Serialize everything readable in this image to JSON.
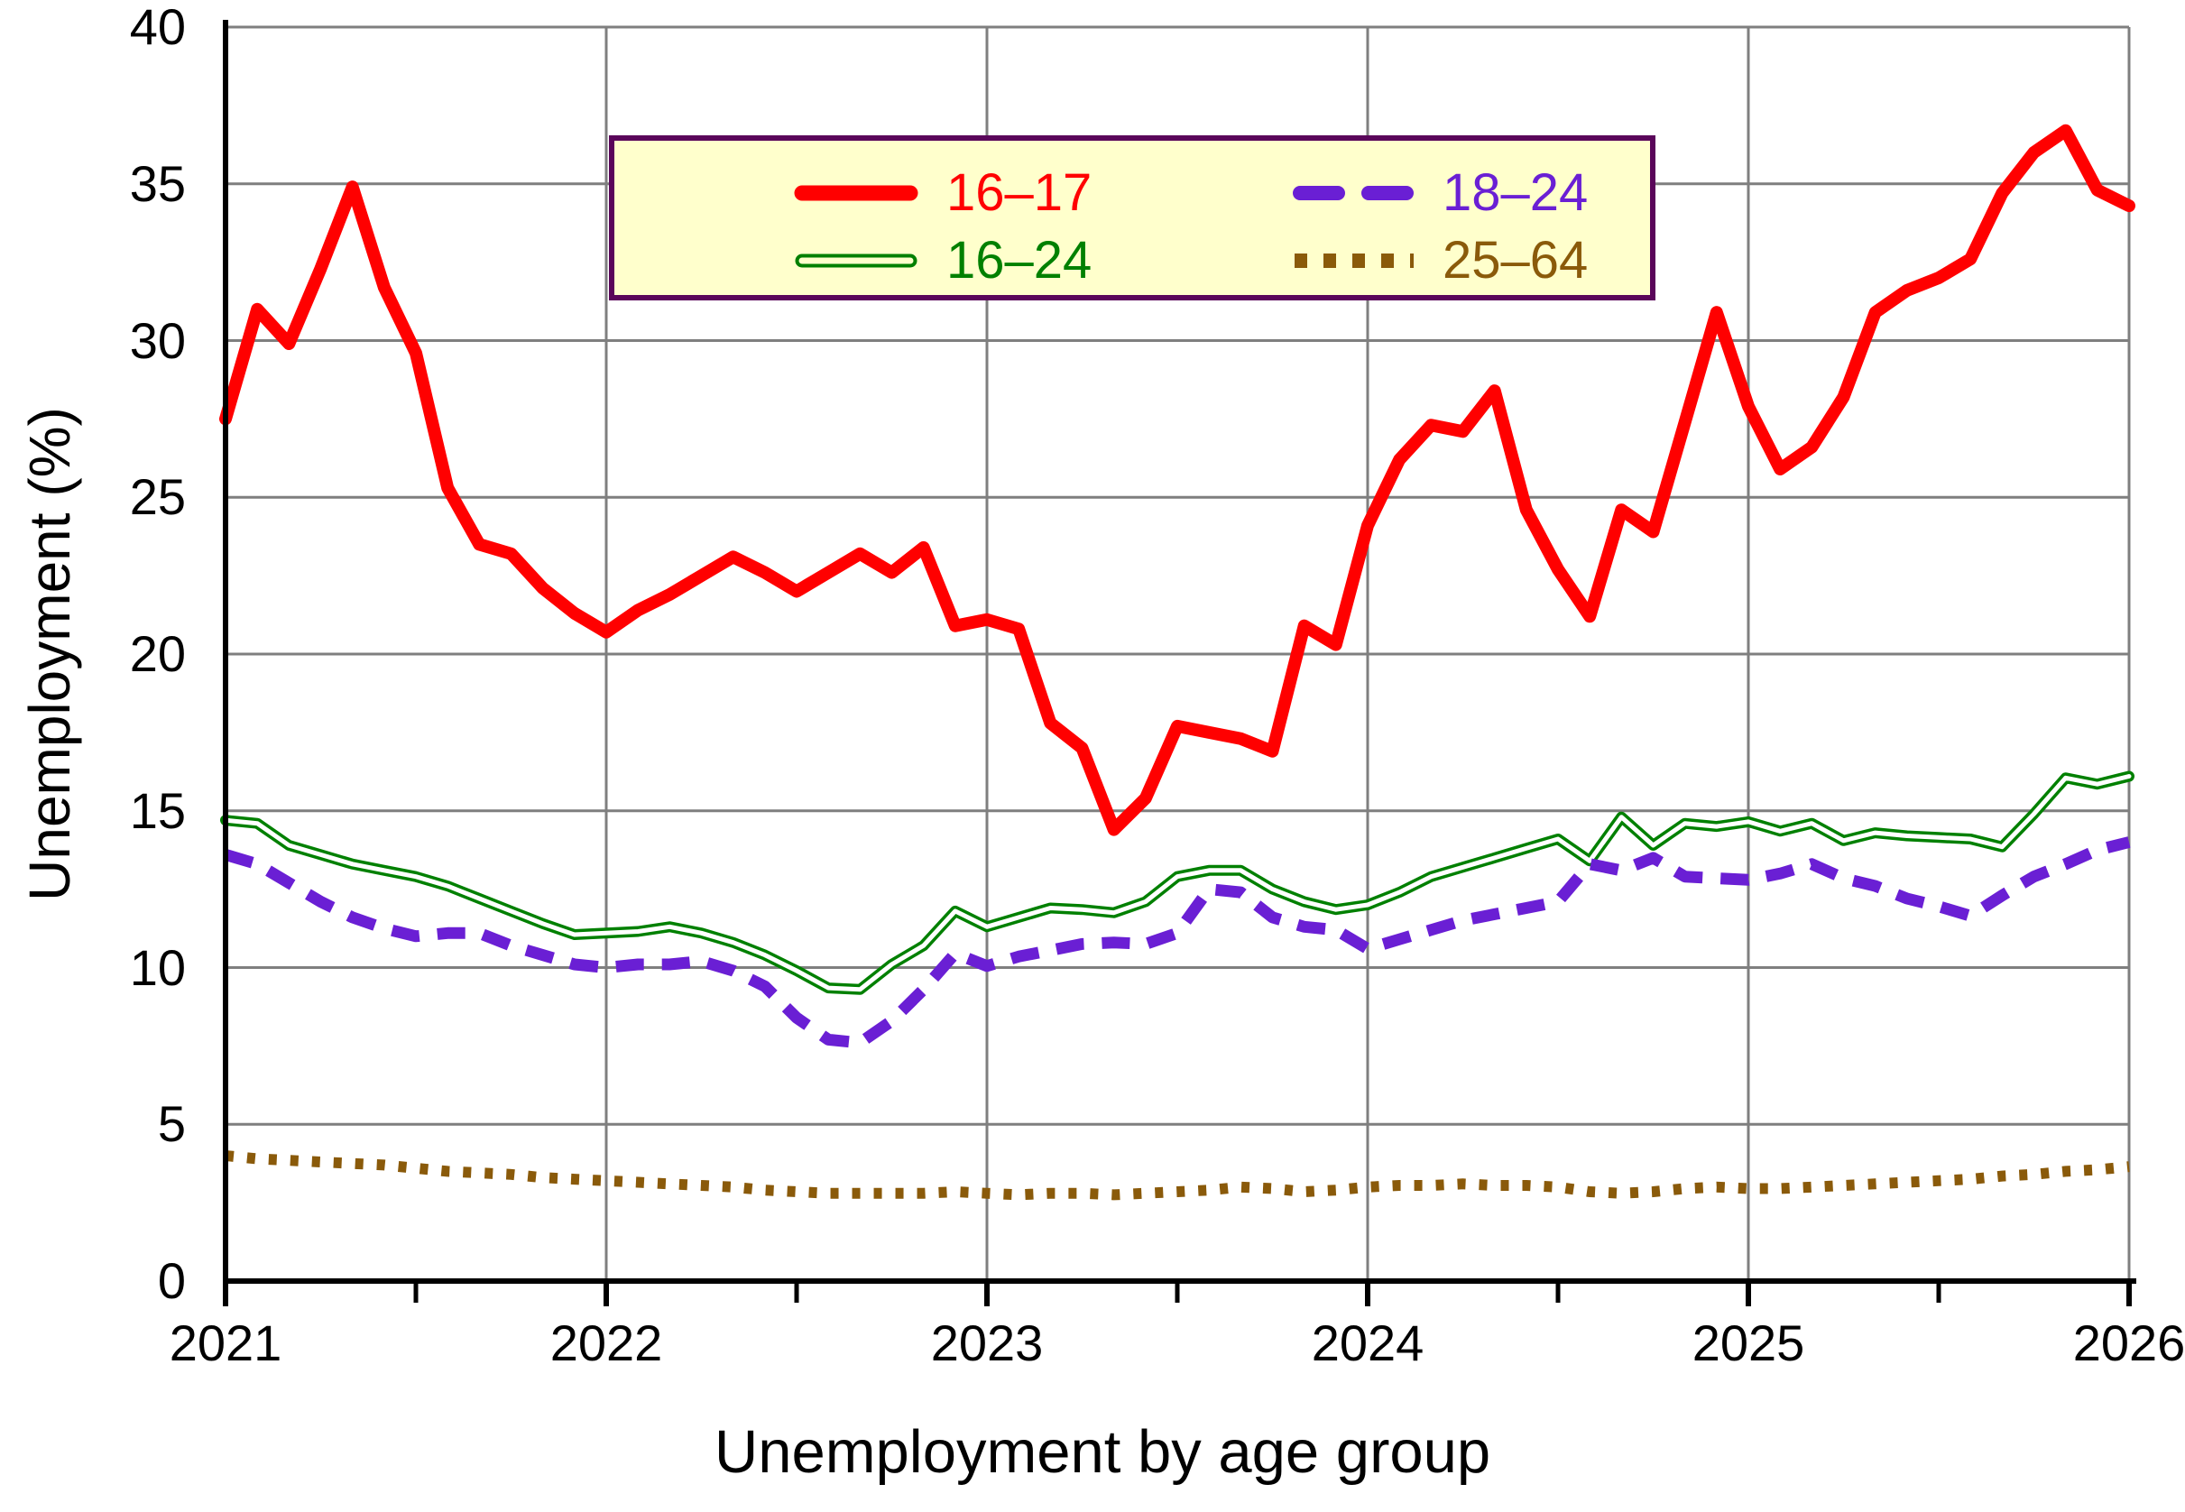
{
  "page": {
    "title": "Unemployment by age group",
    "y_axis_label": "Unemployment (%)"
  },
  "axes": {
    "y_ticks": [
      {
        "label": "0",
        "value": 0
      },
      {
        "label": "5",
        "value": 5
      },
      {
        "label": "10",
        "value": 10
      },
      {
        "label": "15",
        "value": 15
      },
      {
        "label": "20",
        "value": 20
      },
      {
        "label": "25",
        "value": 25
      },
      {
        "label": "30",
        "value": 30
      },
      {
        "label": "35",
        "value": 35
      },
      {
        "label": "40",
        "value": 40
      }
    ],
    "x_ticks": [
      {
        "label": "2021",
        "value": 2021
      },
      {
        "label": "2022",
        "value": 2022
      },
      {
        "label": "2023",
        "value": 2023
      },
      {
        "label": "2024",
        "value": 2024
      },
      {
        "label": "2025",
        "value": 2025
      },
      {
        "label": "2026",
        "value": 2026
      }
    ]
  },
  "legend": {
    "items": [
      {
        "label": "16–17",
        "color": "#FF0000",
        "style": "solid-thick"
      },
      {
        "label": "18–24",
        "color": "#6A1FD4",
        "style": "dashed"
      },
      {
        "label": "16–24",
        "color": "#008000",
        "style": "double-outline"
      },
      {
        "label": "25–64",
        "color": "#8A5A0A",
        "style": "dotted"
      }
    ],
    "background": "#FFFFCC",
    "border_color": "#5A065A",
    "position": "top-center"
  },
  "chart_data": {
    "type": "line",
    "title": "Unemployment by age group",
    "xlabel": "",
    "ylabel": "Unemployment (%)",
    "ylim": [
      0,
      40
    ],
    "y_tick_step": 5,
    "xlim": [
      2021,
      2026
    ],
    "x_unit": "monthly",
    "x_start": "2021-01",
    "x_end": "2026-01",
    "points_per_series": 61,
    "grid": true,
    "grid_color": "#7F7F7F",
    "series": [
      {
        "name": "16–17",
        "color": "#FF0000",
        "line_style": "solid",
        "width": 14,
        "values": [
          27.5,
          31.0,
          29.9,
          32.3,
          34.9,
          31.7,
          29.6,
          25.3,
          23.5,
          23.2,
          22.1,
          21.3,
          20.7,
          21.4,
          21.9,
          22.5,
          23.1,
          22.6,
          22.0,
          22.6,
          23.2,
          22.6,
          23.4,
          20.9,
          21.1,
          20.8,
          17.8,
          17.0,
          14.4,
          15.4,
          17.7,
          17.5,
          17.3,
          16.9,
          20.9,
          20.3,
          24.1,
          26.2,
          27.3,
          27.1,
          28.4,
          24.6,
          22.7,
          21.2,
          24.6,
          23.9,
          27.4,
          30.9,
          27.9,
          25.9,
          26.6,
          28.2,
          30.9,
          31.6,
          32.0,
          32.6,
          34.7,
          36.0,
          36.7,
          34.8,
          34.3
        ]
      },
      {
        "name": "18–24",
        "color": "#6A1FD4",
        "line_style": "dashed",
        "width": 13,
        "values": [
          13.6,
          13.3,
          12.7,
          12.1,
          11.6,
          11.25,
          11.0,
          11.1,
          11.1,
          10.7,
          10.4,
          10.1,
          10.0,
          10.1,
          10.1,
          10.2,
          9.9,
          9.4,
          8.4,
          7.7,
          7.6,
          8.3,
          9.3,
          10.45,
          10.05,
          10.35,
          10.55,
          10.75,
          10.8,
          10.75,
          11.1,
          12.5,
          12.4,
          11.6,
          11.3,
          11.2,
          10.6,
          10.9,
          11.2,
          11.5,
          11.7,
          11.9,
          12.1,
          13.3,
          13.1,
          13.5,
          12.9,
          12.85,
          12.8,
          13.0,
          13.3,
          12.85,
          12.6,
          12.2,
          11.95,
          11.65,
          12.3,
          12.9,
          13.3,
          13.75,
          14.0
        ]
      },
      {
        "name": "16–24",
        "color": "#008000",
        "line_style": "double",
        "width": 12,
        "values": [
          14.7,
          14.6,
          13.9,
          13.6,
          13.3,
          13.1,
          12.9,
          12.6,
          12.2,
          11.8,
          11.4,
          11.05,
          11.1,
          11.15,
          11.3,
          11.1,
          10.8,
          10.4,
          9.9,
          9.35,
          9.3,
          10.1,
          10.7,
          11.8,
          11.3,
          11.6,
          11.9,
          11.85,
          11.75,
          12.1,
          12.9,
          13.1,
          13.1,
          12.5,
          12.1,
          11.85,
          12.0,
          12.4,
          12.9,
          13.2,
          13.5,
          13.8,
          14.1,
          13.4,
          14.8,
          13.9,
          14.6,
          14.5,
          14.65,
          14.35,
          14.6,
          14.05,
          14.3,
          14.2,
          14.15,
          14.1,
          13.85,
          14.9,
          16.05,
          15.85,
          16.1
        ]
      },
      {
        "name": "25–64",
        "color": "#8A5A0A",
        "line_style": "dotted",
        "width": 12,
        "values": [
          4.0,
          3.9,
          3.85,
          3.8,
          3.75,
          3.7,
          3.6,
          3.5,
          3.45,
          3.4,
          3.3,
          3.25,
          3.2,
          3.15,
          3.1,
          3.05,
          3.0,
          2.9,
          2.85,
          2.8,
          2.8,
          2.8,
          2.8,
          2.85,
          2.8,
          2.75,
          2.8,
          2.8,
          2.75,
          2.8,
          2.85,
          2.9,
          3.0,
          2.95,
          2.85,
          2.9,
          3.0,
          3.05,
          3.05,
          3.1,
          3.05,
          3.05,
          3.0,
          2.85,
          2.8,
          2.85,
          2.95,
          3.0,
          2.95,
          2.95,
          3.0,
          3.05,
          3.1,
          3.15,
          3.2,
          3.25,
          3.35,
          3.4,
          3.5,
          3.55,
          3.65
        ]
      }
    ],
    "legend_entries": [
      "16–17",
      "18–24",
      "16–24",
      "25–64"
    ],
    "legend_position": "top-center"
  }
}
